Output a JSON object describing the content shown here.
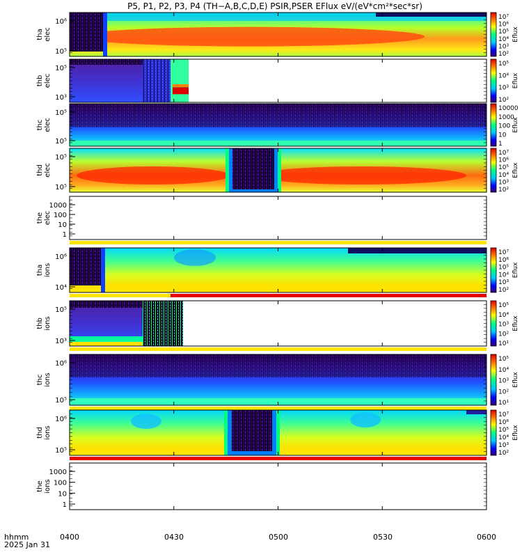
{
  "title": "P5, P1, P2, P3, P4 (TH−A,B,C,D,E) PSIR,PSER EFlux eV/(eV*cm²*sec*sr)",
  "footer": {
    "line1": "hhmm",
    "line2": "2025 Jan 31"
  },
  "x_ticks": [
    "0400",
    "0430",
    "0500",
    "0530",
    "0600"
  ],
  "chart_data": {
    "type": "heatmap",
    "title": "P5, P1, P2, P3, P4 (TH−A,B,C,D,E) PSIR,PSER EFlux eV/(eV*cm²*sec*sr)",
    "xlabel": "",
    "x_range": [
      "0400",
      "0600"
    ],
    "x_tick_labels": [
      "0400",
      "0430",
      "0500",
      "0530",
      "0600"
    ],
    "y_scale": "log",
    "colorbar_label": "Eflux",
    "panels": [
      {
        "id": "tha_elec",
        "ylabel": [
          "tha",
          "elec"
        ],
        "ticks": [
          "10⁶",
          "10⁵"
        ],
        "colorbar_ticks": [
          "10⁷",
          "10⁶",
          "10⁵",
          "10⁴",
          "10³",
          "10²"
        ],
        "status_bar": "none"
      },
      {
        "id": "thb_elec",
        "ylabel": [
          "thb",
          "elec"
        ],
        "ticks": [
          "10⁵",
          "10³"
        ],
        "colorbar_ticks": [
          "10⁵",
          "10⁴",
          "10³",
          "10²"
        ],
        "status_bar": "none"
      },
      {
        "id": "thc_elec",
        "ylabel": [
          "thc",
          "elec"
        ],
        "ticks": [
          "10⁵",
          "10⁵"
        ],
        "colorbar_ticks": [
          "10000",
          "1000",
          "100",
          "10",
          "1"
        ],
        "status_bar": "none"
      },
      {
        "id": "thd_elec",
        "ylabel": [
          "thd",
          "elec"
        ],
        "ticks": [
          "10⁵",
          "10⁵"
        ],
        "colorbar_ticks": [
          "10⁷",
          "10⁶",
          "10⁵",
          "10⁴",
          "10³",
          "10²"
        ],
        "status_bar": "none"
      },
      {
        "id": "the_elec",
        "ylabel": [
          "the",
          "elec"
        ],
        "ticks": [
          "1000",
          "100",
          "10",
          "1"
        ],
        "colorbar_ticks": [],
        "status_bar": "yellow"
      },
      {
        "id": "tha_ions",
        "ylabel": [
          "tha",
          "ions"
        ],
        "ticks": [
          "10⁶",
          "10⁴"
        ],
        "colorbar_ticks": [
          "10⁷",
          "10⁶",
          "10⁵",
          "10⁴",
          "10³",
          "10²"
        ],
        "status_bar": "yellow-red"
      },
      {
        "id": "thb_ions",
        "ylabel": [
          "thb",
          "ions"
        ],
        "ticks": [
          "10⁵",
          "10³"
        ],
        "colorbar_ticks": [
          "10⁵",
          "10⁴",
          "10³",
          "10²",
          "10¹"
        ],
        "status_bar": "yellow"
      },
      {
        "id": "thc_ions",
        "ylabel": [
          "thc",
          "ions"
        ],
        "ticks": [
          "10⁶",
          "10⁵"
        ],
        "colorbar_ticks": [
          "10⁵",
          "10⁴",
          "10³",
          "10²",
          "10¹"
        ],
        "status_bar": "yellow"
      },
      {
        "id": "thd_ions",
        "ylabel": [
          "thd",
          "ions"
        ],
        "ticks": [
          "10⁶",
          "10⁵"
        ],
        "colorbar_ticks": [
          "10⁷",
          "10⁶",
          "10⁵",
          "10⁴",
          "10³",
          "10²"
        ],
        "status_bar": "red"
      },
      {
        "id": "the_ions",
        "ylabel": [
          "the",
          "ions"
        ],
        "ticks": [
          "1000",
          "100",
          "10",
          "1"
        ],
        "colorbar_ticks": [],
        "status_bar": "none"
      }
    ]
  }
}
